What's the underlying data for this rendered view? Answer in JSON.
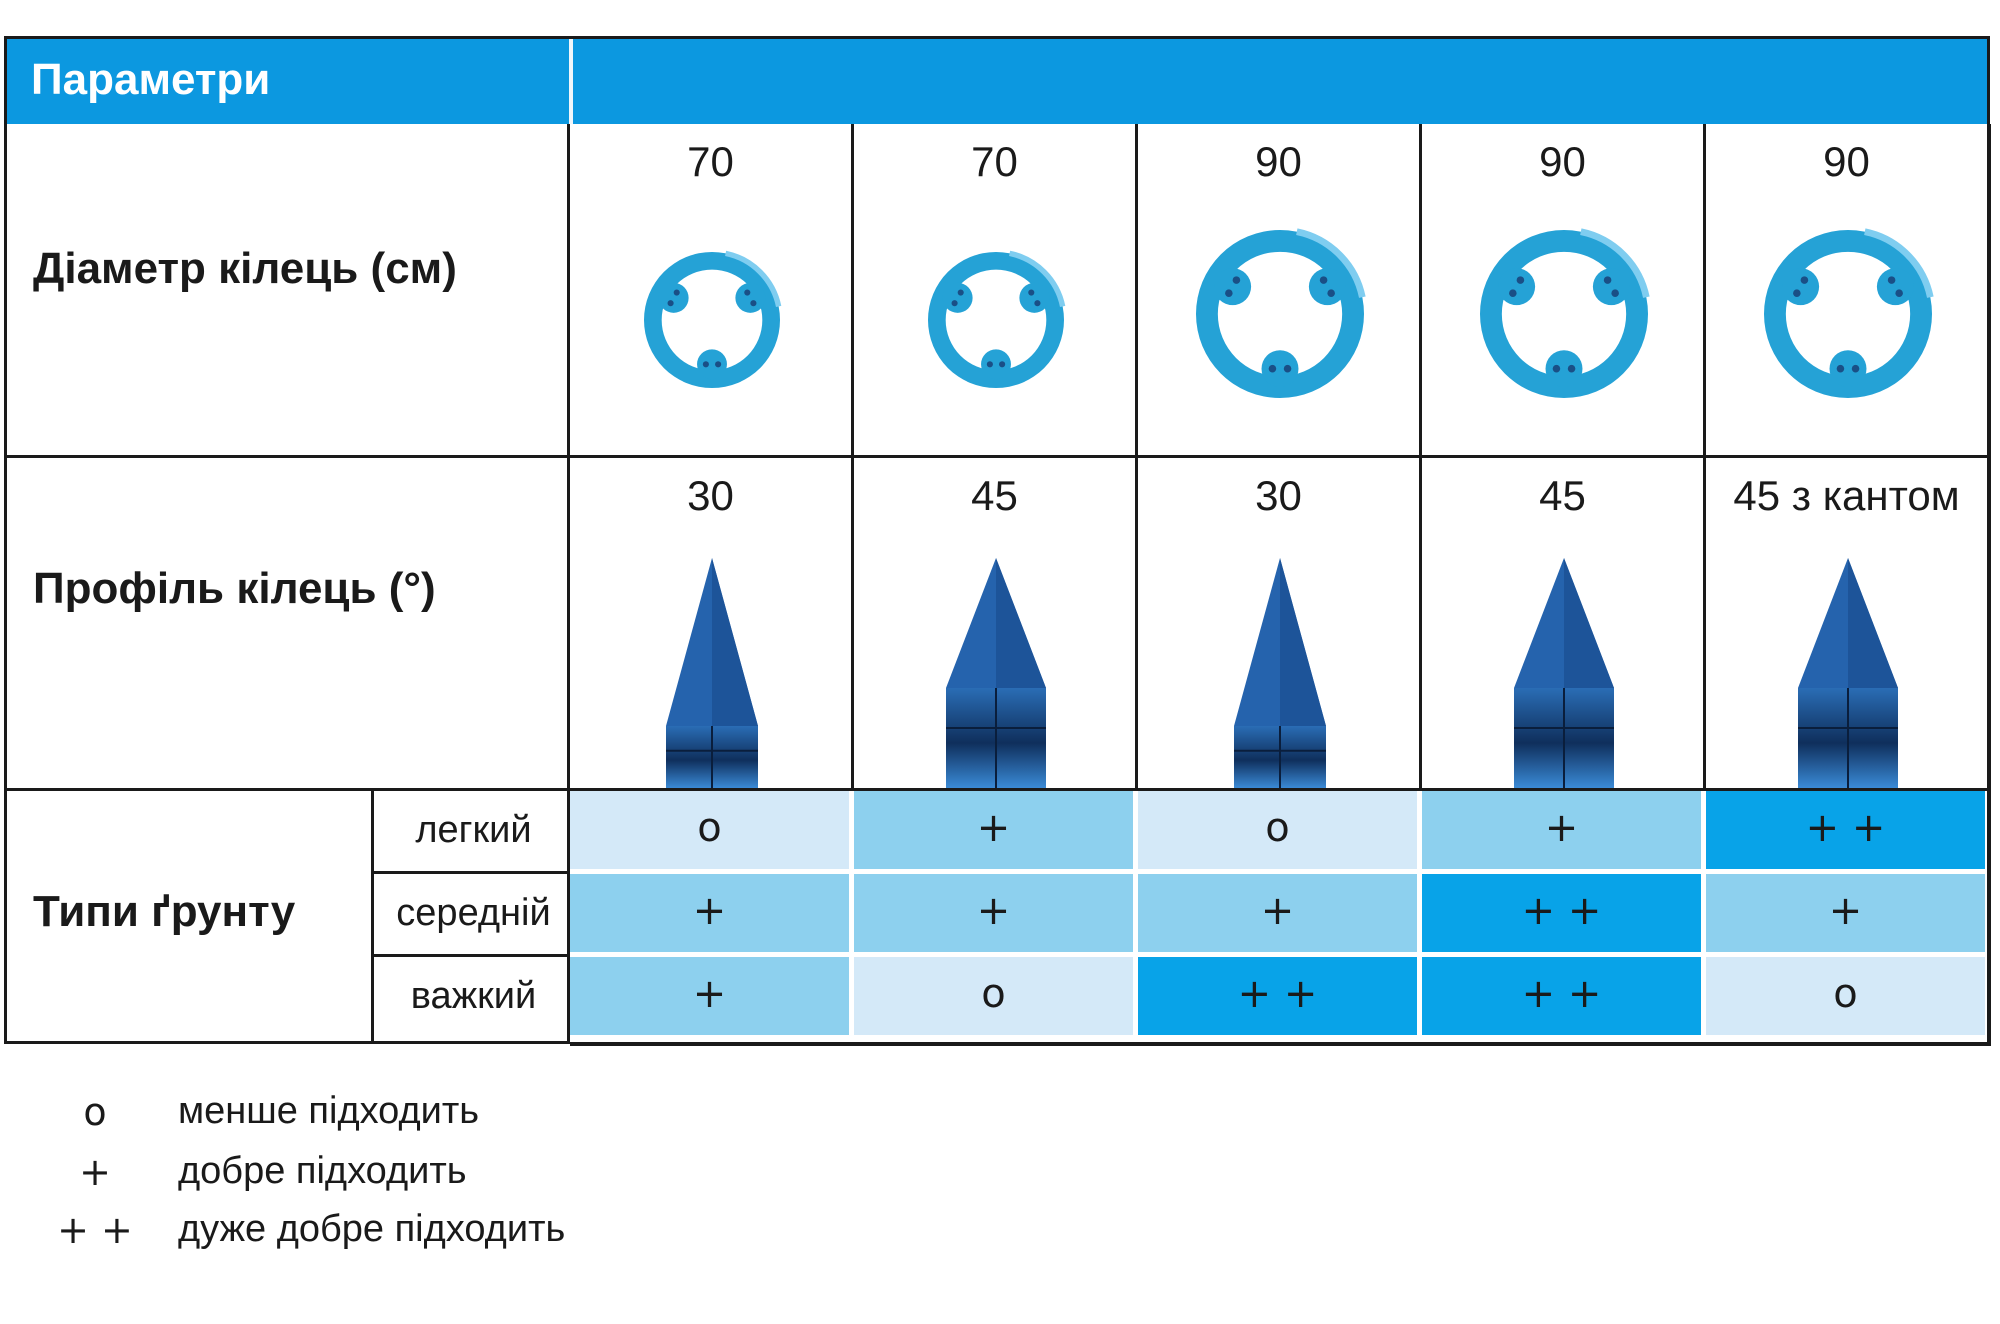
{
  "header": {
    "title": "Параметри"
  },
  "rows": {
    "diameter_label": "Діаметр кілець (см)",
    "profile_label": "Профіль кілець (°)",
    "soil_label": "Типи ґрунту"
  },
  "columns": [
    {
      "diameter": "70",
      "profile": "30",
      "profile_angle": 30,
      "ring_size": 70
    },
    {
      "diameter": "70",
      "profile": "45",
      "profile_angle": 45,
      "ring_size": 70
    },
    {
      "diameter": "90",
      "profile": "30",
      "profile_angle": 30,
      "ring_size": 90
    },
    {
      "diameter": "90",
      "profile": "45",
      "profile_angle": 45,
      "ring_size": 90
    },
    {
      "diameter": "90",
      "profile": "45 з кантом",
      "profile_angle": 45,
      "ring_size": 90
    }
  ],
  "soil_types": [
    {
      "name": "легкий",
      "ratings": [
        "o",
        "+",
        "o",
        "+",
        "+ +"
      ]
    },
    {
      "name": "середній",
      "ratings": [
        "+",
        "+",
        "+",
        "+ +",
        "+"
      ]
    },
    {
      "name": "важкий",
      "ratings": [
        "+",
        "o",
        "+ +",
        "+ +",
        "o"
      ]
    }
  ],
  "rating_colors": {
    "o": "#d4e9f8",
    "+": "#8dd0ee",
    "+ +": "#08a3e8"
  },
  "ring_color": "#25a2d6",
  "legend": [
    {
      "symbol": "o",
      "text": "менше підходить"
    },
    {
      "symbol": "+",
      "text": "добре підходить"
    },
    {
      "symbol": "+ +",
      "text": "дуже добре підходить"
    }
  ]
}
